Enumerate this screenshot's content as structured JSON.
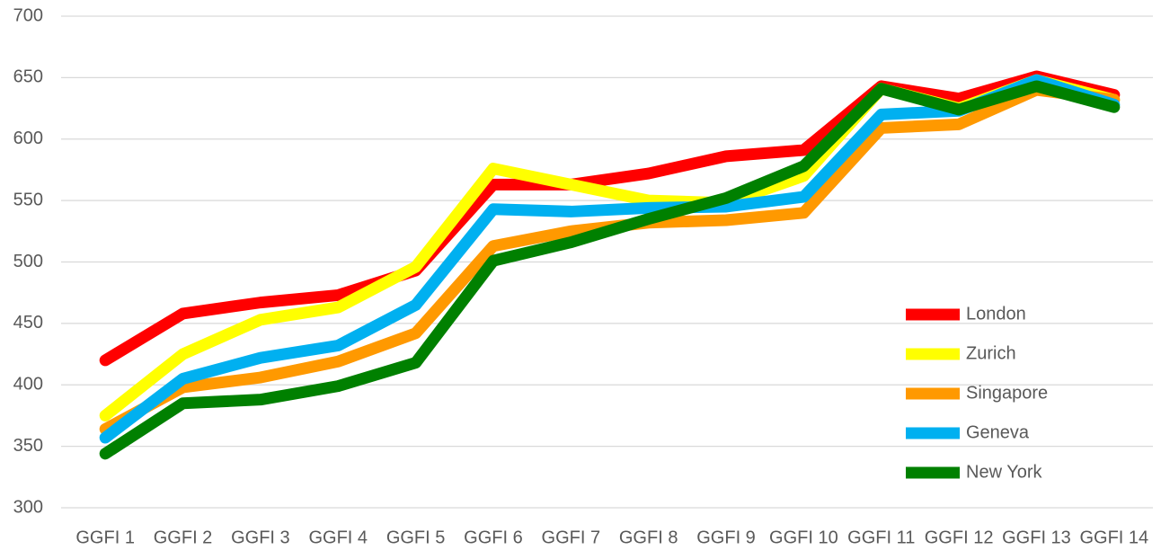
{
  "chart_data": {
    "type": "line",
    "categories": [
      "GGFI 1",
      "GGFI 2",
      "GGFI 3",
      "GGFI 4",
      "GGFI 5",
      "GGFI 6",
      "GGFI 7",
      "GGFI 8",
      "GGFI 9",
      "GGFI 10",
      "GGFI 11",
      "GGFI 12",
      "GGFI 13",
      "GGFI 14"
    ],
    "series": [
      {
        "name": "London",
        "color": "#ff0000",
        "values": [
          420,
          458,
          467,
          473,
          493,
          563,
          563,
          572,
          586,
          591,
          643,
          633,
          651,
          636
        ]
      },
      {
        "name": "Zurich",
        "color": "#ffff00",
        "values": [
          375,
          425,
          453,
          463,
          496,
          576,
          563,
          550,
          548,
          570,
          641,
          625,
          648,
          632
        ]
      },
      {
        "name": "Singapore",
        "color": "#ff9900",
        "values": [
          364,
          398,
          406,
          419,
          442,
          513,
          525,
          532,
          534,
          540,
          609,
          612,
          640,
          632
        ]
      },
      {
        "name": "Geneva",
        "color": "#00b0f0",
        "values": [
          357,
          405,
          422,
          432,
          465,
          543,
          541,
          544,
          545,
          553,
          620,
          623,
          648,
          628
        ]
      },
      {
        "name": "New York",
        "color": "#008000",
        "values": [
          344,
          385,
          388,
          399,
          418,
          501,
          516,
          535,
          552,
          578,
          641,
          624,
          643,
          626
        ]
      }
    ],
    "ylim": [
      300,
      700
    ],
    "yticks": [
      300,
      350,
      400,
      450,
      500,
      550,
      600,
      650,
      700
    ],
    "grid": true,
    "legend": "lower right"
  }
}
